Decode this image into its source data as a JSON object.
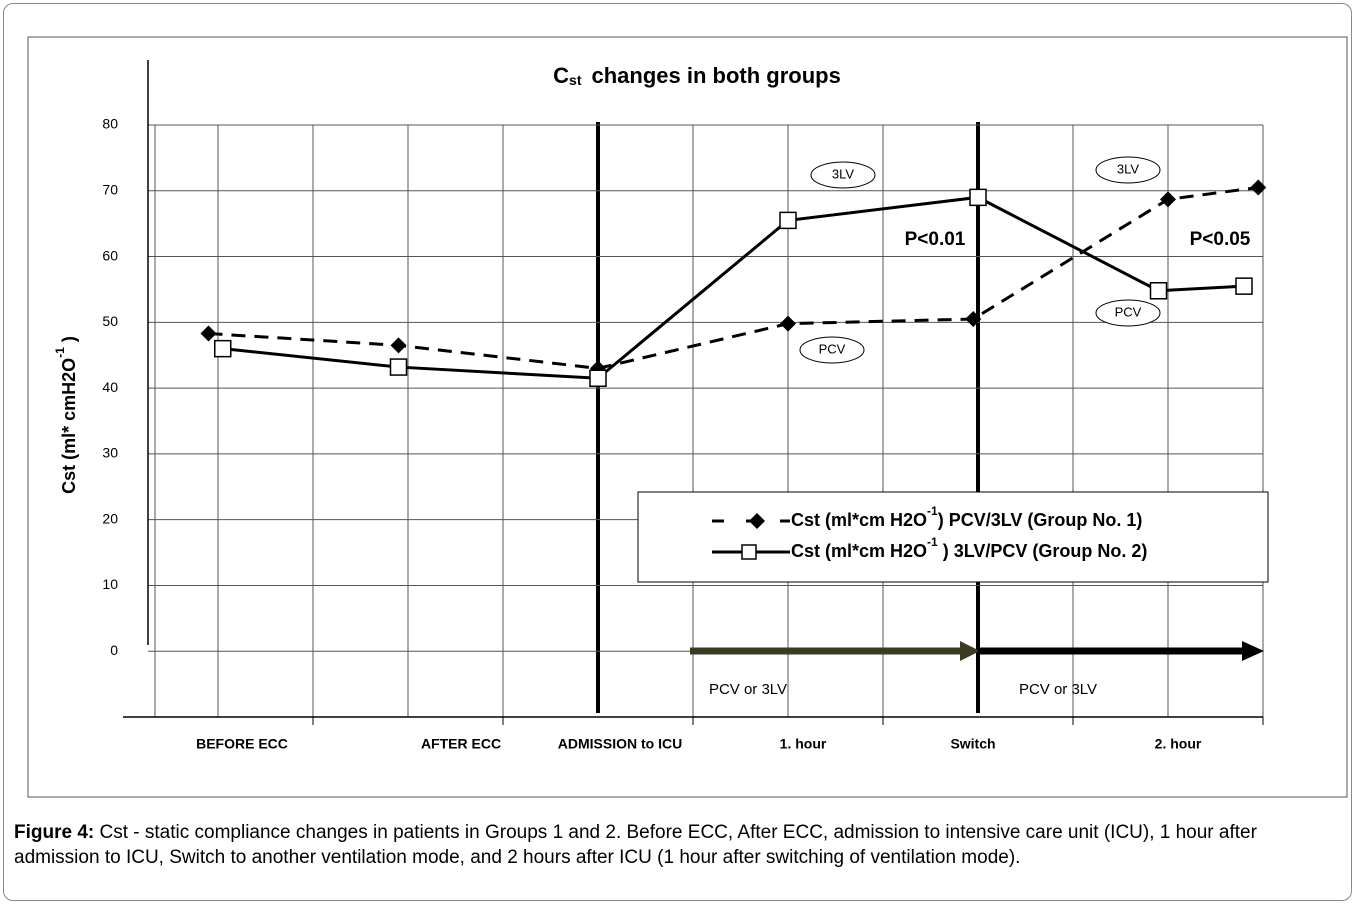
{
  "chart_data": {
    "type": "line",
    "title": {
      "main": "C",
      "sub": "st",
      "rest": "changes in both groups"
    },
    "ylabel": {
      "main": "Cst (ml* cmH2O",
      "sup": "-1",
      "end": " )"
    },
    "x_labels": [
      "BEFORE  ECC",
      "AFTER ECC",
      "ADMISSION to ICU",
      "1. hour",
      "Switch",
      "2. hour"
    ],
    "xlim": [
      0,
      12
    ],
    "ylim": [
      -10,
      80
    ],
    "yticks": [
      0,
      10,
      20,
      30,
      40,
      50,
      60,
      70,
      80
    ],
    "grid": true,
    "series": [
      {
        "name": [
          "Cst (ml*cm H2O",
          "-1",
          ") PCV/3LV (Group No. 1)"
        ],
        "color": "#000000",
        "dash": true,
        "marker": "diamond",
        "x": [
          0.9,
          2.9,
          5.0,
          7.0,
          8.95,
          11.0,
          11.95
        ],
        "values": [
          48.3,
          46.5,
          43,
          49.8,
          50.5,
          68.7,
          70.5
        ]
      },
      {
        "name": [
          "Cst (ml*cm H2O",
          "-1",
          " ) 3LV/PCV (Group No. 2)"
        ],
        "color": "#000000",
        "dash": false,
        "marker": "square",
        "x": [
          1.05,
          2.9,
          5.0,
          7.0,
          9.0,
          10.9,
          11.8
        ],
        "values": [
          46,
          43.2,
          41.5,
          65.5,
          69,
          54.8,
          55.5
        ]
      }
    ],
    "annotations": [
      "3LV",
      "3LV",
      "PCV",
      "PCV",
      "P<0.01",
      "P<0.05",
      "PCV or 3LV",
      "PCV or 3LV"
    ]
  },
  "caption": {
    "label": "Figure 4:",
    "text": " Cst - static compliance changes in patients in Groups 1 and 2. Before ECC, After ECC, admission to intensive care unit (ICU), 1 hour after admission to ICU, Switch to another ventilation mode, and 2 hours after ICU (1 hour after switching of ventilation mode)."
  }
}
